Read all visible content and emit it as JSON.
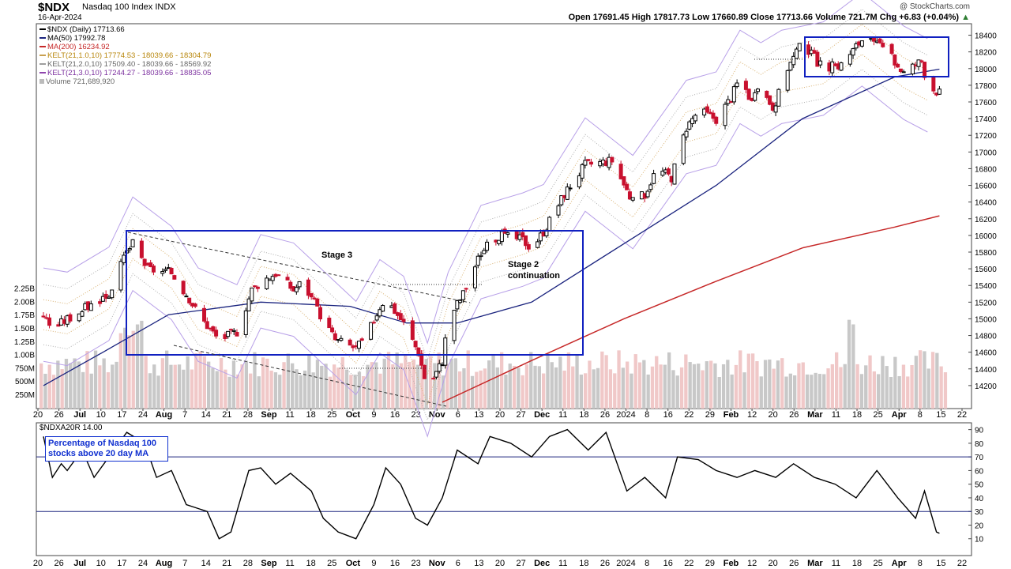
{
  "header": {
    "ticker": "$NDX",
    "name": "Nasdaq 100 Index",
    "exchange": "INDX",
    "date": "16-Apr-2024",
    "credit": "@ StockCharts.com",
    "ohlc": "Open 17691.45  High 17817.73  Low 17660.89  Close 17713.66  Volume 721.7M  Chg +6.83 (+0.04%)",
    "ohlc_up_arrow": "▲"
  },
  "legend": [
    {
      "text": "$NDX (Daily) 17713.66",
      "color": "#000000"
    },
    {
      "text": "MA(50) 17992.78",
      "color": "#1a237e"
    },
    {
      "text": "MA(200) 16234.92",
      "color": "#c62828"
    },
    {
      "text": "KELT(21,1.0,10) 17774.53 - 18039.66 - 18304.79",
      "color": "#c8a050"
    },
    {
      "text": "KELT(21,2.0,10) 17509.40 - 18039.66 - 18569.92",
      "color": "#9e9e9e"
    },
    {
      "text": "KELT(21,3.0,10) 17244.27 - 18039.66 - 18835.05",
      "color": "#8e44ad"
    },
    {
      "text": "Volume 721,689,920",
      "color": "#999999"
    }
  ],
  "annotations": {
    "stage3": "Stage 3",
    "stage2_line1": "Stage 2",
    "stage2_line2": "continuation",
    "note_line1": "Percentage of Nasdaq 100",
    "note_line2": "stocks above 20 day MA"
  },
  "indicator_title": "$NDXA20R 14.00",
  "colors": {
    "up": "#000000",
    "down": "#c8102e",
    "ma50": "#1a237e",
    "ma200": "#c62828",
    "box": "#1020c0",
    "volume": "#c8c8c8",
    "volume_down": "#f0c8c8",
    "kelt1": "#d8b070",
    "kelt2": "#b0b0b0",
    "kelt3": "#b8a0e8"
  },
  "chart_data": [
    {
      "type": "candlestick",
      "title": "$NDX Nasdaq 100 Index (Daily)",
      "x_labels": [
        "20",
        "26",
        "Jul",
        "10",
        "17",
        "24",
        "Aug",
        "7",
        "14",
        "21",
        "28",
        "Sep",
        "11",
        "18",
        "25",
        "Oct",
        "9",
        "16",
        "23",
        "Nov",
        "6",
        "13",
        "20",
        "27",
        "Dec",
        "11",
        "18",
        "26",
        "2024",
        "8",
        "16",
        "22",
        "29",
        "Feb",
        "12",
        "20",
        "26",
        "Mar",
        "11",
        "18",
        "25",
        "Apr",
        "8",
        "15",
        "22"
      ],
      "ylim": [
        14000,
        18500
      ],
      "y_ticks": [
        14200,
        14400,
        14600,
        14800,
        15000,
        15200,
        15400,
        15600,
        15800,
        16000,
        16200,
        16400,
        16600,
        16800,
        17000,
        17200,
        17400,
        17600,
        17800,
        18000,
        18200,
        18400
      ],
      "volume_ticks": [
        "250M",
        "500M",
        "750M",
        "1.00B",
        "1.25B",
        "1.50B",
        "1.75B",
        "2.00B",
        "2.25B"
      ],
      "close_path": [
        {
          "x": "Jun 20",
          "y": 15050
        },
        {
          "x": "Jun 23",
          "y": 14880
        },
        {
          "x": "Jun 28",
          "y": 15000
        },
        {
          "x": "Jul 5",
          "y": 15150
        },
        {
          "x": "Jul 12",
          "y": 15300
        },
        {
          "x": "Jul 18",
          "y": 15800
        },
        {
          "x": "Jul 20",
          "y": 15900
        },
        {
          "x": "Jul 25",
          "y": 15600
        },
        {
          "x": "Aug 2",
          "y": 15550
        },
        {
          "x": "Aug 8",
          "y": 15250
        },
        {
          "x": "Aug 11",
          "y": 15050
        },
        {
          "x": "Aug 18",
          "y": 14750
        },
        {
          "x": "Aug 24",
          "y": 14850
        },
        {
          "x": "Aug 29",
          "y": 15350
        },
        {
          "x": "Sep 1",
          "y": 15450
        },
        {
          "x": "Sep 6",
          "y": 15550
        },
        {
          "x": "Sep 12",
          "y": 15350
        },
        {
          "x": "Sep 15",
          "y": 15450
        },
        {
          "x": "Sep 21",
          "y": 15050
        },
        {
          "x": "Sep 26",
          "y": 14750
        },
        {
          "x": "Oct 3",
          "y": 14650
        },
        {
          "x": "Oct 6",
          "y": 14750
        },
        {
          "x": "Oct 11",
          "y": 15150
        },
        {
          "x": "Oct 13",
          "y": 15250
        },
        {
          "x": "Oct 19",
          "y": 14950
        },
        {
          "x": "Oct 24",
          "y": 14600
        },
        {
          "x": "Oct 27",
          "y": 14150
        },
        {
          "x": "Nov 1",
          "y": 14500
        },
        {
          "x": "Nov 3",
          "y": 15000
        },
        {
          "x": "Nov 8",
          "y": 15300
        },
        {
          "x": "Nov 14",
          "y": 15800
        },
        {
          "x": "Nov 20",
          "y": 16000
        },
        {
          "x": "Nov 28",
          "y": 15950
        },
        {
          "x": "Dec 1",
          "y": 15850
        },
        {
          "x": "Dec 5",
          "y": 16050
        },
        {
          "x": "Dec 12",
          "y": 16500
        },
        {
          "x": "Dec 19",
          "y": 16850
        },
        {
          "x": "Dec 28",
          "y": 16900
        },
        {
          "x": "Jan 4",
          "y": 16400
        },
        {
          "x": "Jan 8",
          "y": 16500
        },
        {
          "x": "Jan 12",
          "y": 16800
        },
        {
          "x": "Jan 17",
          "y": 16700
        },
        {
          "x": "Jan 22",
          "y": 17300
        },
        {
          "x": "Jan 26",
          "y": 17500
        },
        {
          "x": "Feb 1",
          "y": 17400
        },
        {
          "x": "Feb 6",
          "y": 17650
        },
        {
          "x": "Feb 9",
          "y": 17900
        },
        {
          "x": "Feb 13",
          "y": 17600
        },
        {
          "x": "Feb 16",
          "y": 17750
        },
        {
          "x": "Feb 21",
          "y": 17500
        },
        {
          "x": "Feb 23",
          "y": 17900
        },
        {
          "x": "Mar 1",
          "y": 18300
        },
        {
          "x": "Mar 8",
          "y": 18000
        },
        {
          "x": "Mar 14",
          "y": 18050
        },
        {
          "x": "Mar 21",
          "y": 18350
        },
        {
          "x": "Mar 28",
          "y": 18250
        },
        {
          "x": "Apr 4",
          "y": 17950
        },
        {
          "x": "Apr 10",
          "y": 18100
        },
        {
          "x": "Apr 12",
          "y": 17800
        },
        {
          "x": "Apr 16",
          "y": 17713.66
        }
      ],
      "ma50": [
        {
          "x": "Jun 20",
          "y": 14200
        },
        {
          "x": "Jul 10",
          "y": 14600
        },
        {
          "x": "Aug 1",
          "y": 15050
        },
        {
          "x": "Sep 1",
          "y": 15200
        },
        {
          "x": "Oct 1",
          "y": 15150
        },
        {
          "x": "Oct 20",
          "y": 14950
        },
        {
          "x": "Nov 6",
          "y": 14950
        },
        {
          "x": "Dec 1",
          "y": 15200
        },
        {
          "x": "Jan 1",
          "y": 15900
        },
        {
          "x": "Feb 1",
          "y": 16600
        },
        {
          "x": "Mar 1",
          "y": 17400
        },
        {
          "x": "Apr 1",
          "y": 17900
        },
        {
          "x": "Apr 16",
          "y": 17992.78
        }
      ],
      "ma200": [
        {
          "x": "Nov 1",
          "y": 14000
        },
        {
          "x": "Dec 1",
          "y": 14500
        },
        {
          "x": "Jan 1",
          "y": 15000
        },
        {
          "x": "Feb 1",
          "y": 15450
        },
        {
          "x": "Mar 1",
          "y": 15850
        },
        {
          "x": "Apr 1",
          "y": 16100
        },
        {
          "x": "Apr 16",
          "y": 16234.92
        }
      ]
    },
    {
      "type": "line",
      "title": "$NDXA20R 14.00",
      "ylim": [
        0,
        95
      ],
      "y_ticks": [
        10,
        20,
        30,
        40,
        50,
        60,
        70,
        80,
        90
      ],
      "reference_lines": [
        30,
        70
      ],
      "values": [
        {
          "x": "Jun 20",
          "y": 85
        },
        {
          "x": "Jun 23",
          "y": 55
        },
        {
          "x": "Jun 26",
          "y": 65
        },
        {
          "x": "Jun 28",
          "y": 60
        },
        {
          "x": "Jul 3",
          "y": 75
        },
        {
          "x": "Jul 7",
          "y": 55
        },
        {
          "x": "Jul 12",
          "y": 70
        },
        {
          "x": "Jul 18",
          "y": 88
        },
        {
          "x": "Jul 24",
          "y": 80
        },
        {
          "x": "Jul 28",
          "y": 55
        },
        {
          "x": "Aug 2",
          "y": 60
        },
        {
          "x": "Aug 7",
          "y": 35
        },
        {
          "x": "Aug 14",
          "y": 30
        },
        {
          "x": "Aug 18",
          "y": 10
        },
        {
          "x": "Aug 22",
          "y": 15
        },
        {
          "x": "Aug 28",
          "y": 60
        },
        {
          "x": "Sep 1",
          "y": 62
        },
        {
          "x": "Sep 6",
          "y": 50
        },
        {
          "x": "Sep 11",
          "y": 58
        },
        {
          "x": "Sep 18",
          "y": 45
        },
        {
          "x": "Sep 22",
          "y": 25
        },
        {
          "x": "Sep 27",
          "y": 15
        },
        {
          "x": "Oct 3",
          "y": 10
        },
        {
          "x": "Oct 9",
          "y": 35
        },
        {
          "x": "Oct 13",
          "y": 62
        },
        {
          "x": "Oct 18",
          "y": 50
        },
        {
          "x": "Oct 23",
          "y": 25
        },
        {
          "x": "Oct 27",
          "y": 20
        },
        {
          "x": "Nov 1",
          "y": 40
        },
        {
          "x": "Nov 6",
          "y": 75
        },
        {
          "x": "Nov 13",
          "y": 65
        },
        {
          "x": "Nov 17",
          "y": 85
        },
        {
          "x": "Nov 24",
          "y": 80
        },
        {
          "x": "Dec 1",
          "y": 70
        },
        {
          "x": "Dec 7",
          "y": 85
        },
        {
          "x": "Dec 13",
          "y": 90
        },
        {
          "x": "Dec 20",
          "y": 75
        },
        {
          "x": "Dec 26",
          "y": 88
        },
        {
          "x": "Jan 2",
          "y": 45
        },
        {
          "x": "Jan 8",
          "y": 55
        },
        {
          "x": "Jan 15",
          "y": 40
        },
        {
          "x": "Jan 19",
          "y": 70
        },
        {
          "x": "Jan 26",
          "y": 68
        },
        {
          "x": "Feb 1",
          "y": 60
        },
        {
          "x": "Feb 8",
          "y": 55
        },
        {
          "x": "Feb 14",
          "y": 60
        },
        {
          "x": "Feb 21",
          "y": 55
        },
        {
          "x": "Feb 27",
          "y": 65
        },
        {
          "x": "Mar 5",
          "y": 55
        },
        {
          "x": "Mar 12",
          "y": 50
        },
        {
          "x": "Mar 19",
          "y": 40
        },
        {
          "x": "Mar 26",
          "y": 60
        },
        {
          "x": "Apr 2",
          "y": 40
        },
        {
          "x": "Apr 8",
          "y": 25
        },
        {
          "x": "Apr 11",
          "y": 45
        },
        {
          "x": "Apr 15",
          "y": 15
        },
        {
          "x": "Apr 16",
          "y": 14
        }
      ]
    }
  ]
}
